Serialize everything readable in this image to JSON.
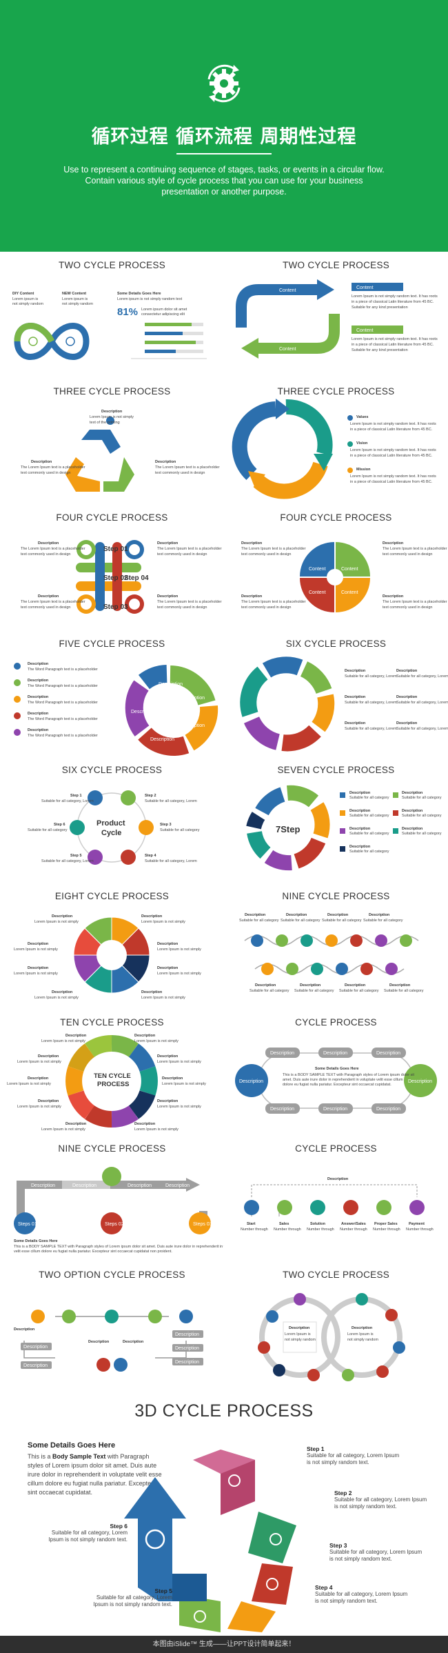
{
  "header": {
    "title": "循环过程 循环流程 周期性过程",
    "subtitle_lines": [
      "Use to represent a continuing sequence of stages, tasks, or events in a circular flow.",
      "Contain various style of cycle process that you can use for your business",
      "presentation or another purpose."
    ],
    "colors": {
      "brand_green": "#18a54c",
      "blue": "#2c6fad",
      "green": "#7ab648",
      "orange": "#f39c12",
      "red": "#c0392b",
      "purple": "#8e44ad",
      "teal": "#1a9c8a"
    }
  },
  "sections": [
    {
      "title": "TWO CYCLE PROCESS",
      "stat": "81%",
      "labels": [
        "Content",
        "Content"
      ]
    },
    {
      "title": "TWO CYCLE PROCESS"
    },
    {
      "title": "THREE CYCLE PROCESS"
    },
    {
      "title": "THREE CYCLE PROCESS",
      "labels": [
        "Values",
        "Vision",
        "Mission"
      ]
    },
    {
      "title": "FOUR CYCLE PROCESS",
      "labels": [
        "Step 01",
        "Step 02",
        "Step 03",
        "Step 04"
      ]
    },
    {
      "title": "FOUR CYCLE PROCESS"
    },
    {
      "title": "FIVE CYCLE PROCESS"
    },
    {
      "title": "SIX CYCLE PROCESS"
    },
    {
      "title": "SIX CYCLE PROCESS",
      "center": "Product Cycle"
    },
    {
      "title": "SEVEN CYCLE PROCESS",
      "center": "7Step"
    },
    {
      "title": "EIGHT CYCLE PROCESS"
    },
    {
      "title": "NINE CYCLE PROCESS"
    },
    {
      "title": "TEN CYCLE PROCESS",
      "center": "TEN CYCLE PROCESS"
    },
    {
      "title": "CYCLE PROCESS"
    },
    {
      "title": "NINE CYCLE PROCESS"
    },
    {
      "title": "CYCLE PROCESS"
    },
    {
      "title": "TWO OPTION CYCLE PROCESS"
    },
    {
      "title": "TWO CYCLE PROCESS"
    }
  ],
  "cycle3d": {
    "title": "3D CYCLE PROCESS",
    "heading": "Some Details Goes Here",
    "body_prefix": "This is a ",
    "body_bold": "Body Sample Text",
    "body_rest": " with Paragraph styles of Lorem ipsum dolor sit amet. Duis aute irure dolor in reprehenderit in voluptate velit esse cillum dolore eu fugiat nulla pariatur. Excepteur sint occaecat cupidatat.",
    "steps": [
      {
        "title": "Step 1",
        "text": "Suitable for all category, Lorem Ipsum is not simply random text."
      },
      {
        "title": "Step 2",
        "text": "Suitable for all category, Lorem Ipsum is not simply random text."
      },
      {
        "title": "Step 3",
        "text": "Suitable for all category, Lorem Ipsum is not simply random text."
      },
      {
        "title": "Step 4",
        "text": "Suitable for all category, Lorem Ipsum is not simply random text."
      },
      {
        "title": "Step 5",
        "text": "Suitable for all category, Lorem Ipsum is not simply random text."
      },
      {
        "title": "Step 6",
        "text": "Suitable for all category, Lorem Ipsum is not simply random text."
      }
    ]
  },
  "footer": {
    "text": "本图由iSlide™ 生成——让PPT设计简单起来！"
  }
}
